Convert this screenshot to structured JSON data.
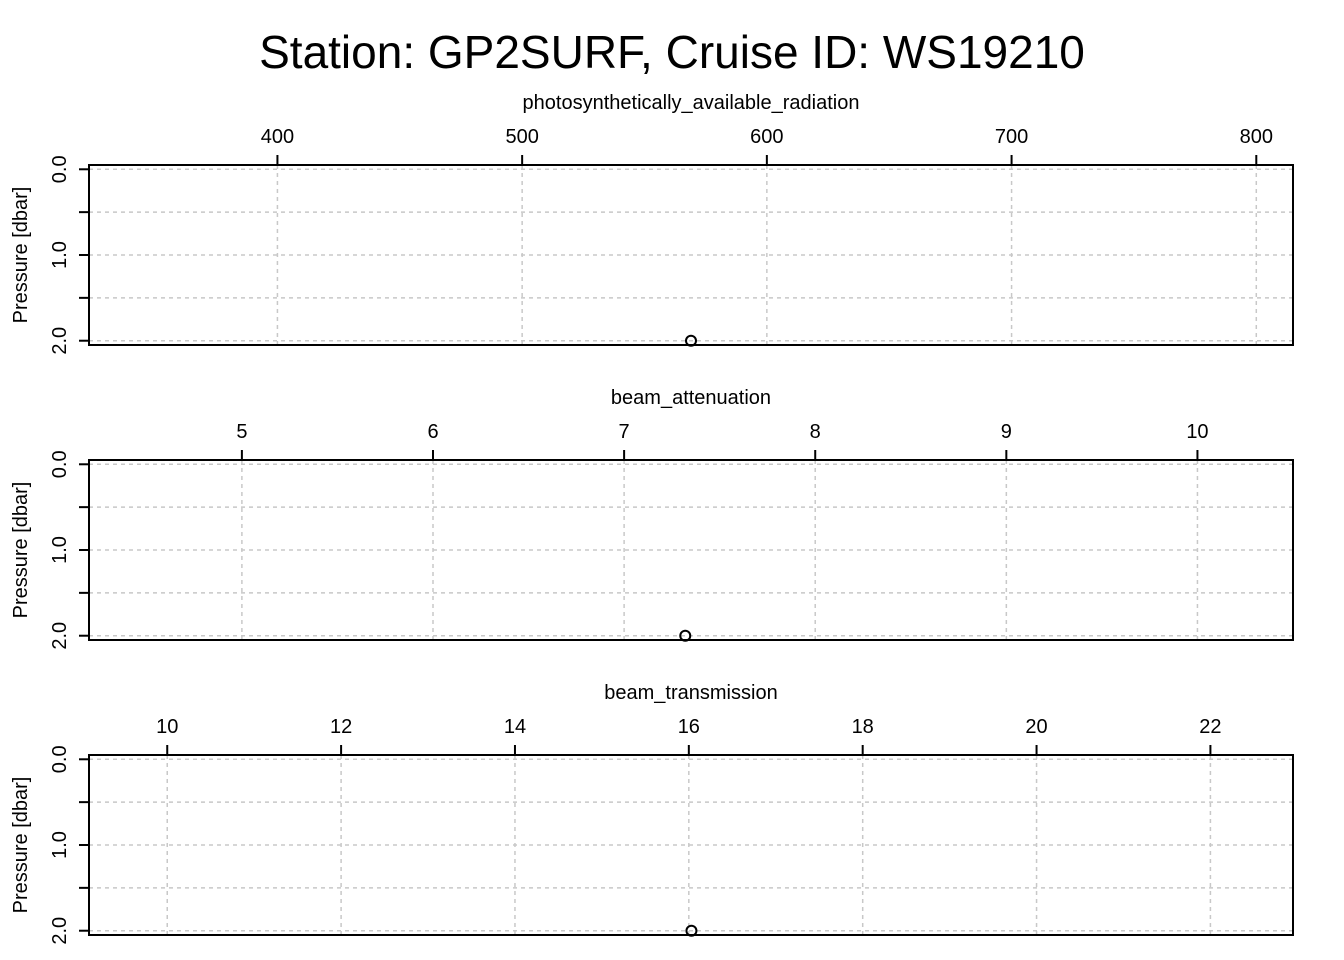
{
  "title": "Station: GP2SURF, Cruise ID: WS19210",
  "chart_data": [
    {
      "type": "scatter",
      "title": "photosynthetically_available_radiation",
      "xlabel": "photosynthetically_available_radiation",
      "ylabel": "Pressure [dbar]",
      "xlim": [
        323,
        815
      ],
      "ylim": [
        2.05,
        -0.05
      ],
      "y_reversed": true,
      "x_ticks": [
        400,
        500,
        600,
        700,
        800
      ],
      "y_ticks": [
        0.0,
        0.5,
        1.0,
        1.5,
        2.0
      ],
      "y_tick_labels": [
        "0.0",
        "",
        "1.0",
        "",
        "2.0"
      ],
      "x_axis_position": "top",
      "grid": true,
      "points": [
        {
          "x": 569,
          "y": 2.0
        }
      ]
    },
    {
      "type": "scatter",
      "title": "beam_attenuation",
      "xlabel": "beam_attenuation",
      "ylabel": "Pressure [dbar]",
      "xlim": [
        4.2,
        10.5
      ],
      "ylim": [
        2.05,
        -0.05
      ],
      "y_reversed": true,
      "x_ticks": [
        5,
        6,
        7,
        8,
        9,
        10
      ],
      "y_ticks": [
        0.0,
        0.5,
        1.0,
        1.5,
        2.0
      ],
      "y_tick_labels": [
        "0.0",
        "",
        "1.0",
        "",
        "2.0"
      ],
      "x_axis_position": "top",
      "grid": true,
      "points": [
        {
          "x": 7.32,
          "y": 2.0
        }
      ]
    },
    {
      "type": "scatter",
      "title": "beam_transmission",
      "xlabel": "beam_transmission",
      "ylabel": "Pressure [dbar]",
      "xlim": [
        9.1,
        22.95
      ],
      "ylim": [
        2.05,
        -0.05
      ],
      "y_reversed": true,
      "x_ticks": [
        10,
        12,
        14,
        16,
        18,
        20,
        22
      ],
      "y_ticks": [
        0.0,
        0.5,
        1.0,
        1.5,
        2.0
      ],
      "y_tick_labels": [
        "0.0",
        "",
        "1.0",
        "",
        "2.0"
      ],
      "x_axis_position": "top",
      "grid": true,
      "points": [
        {
          "x": 16.03,
          "y": 2.0
        }
      ]
    }
  ]
}
